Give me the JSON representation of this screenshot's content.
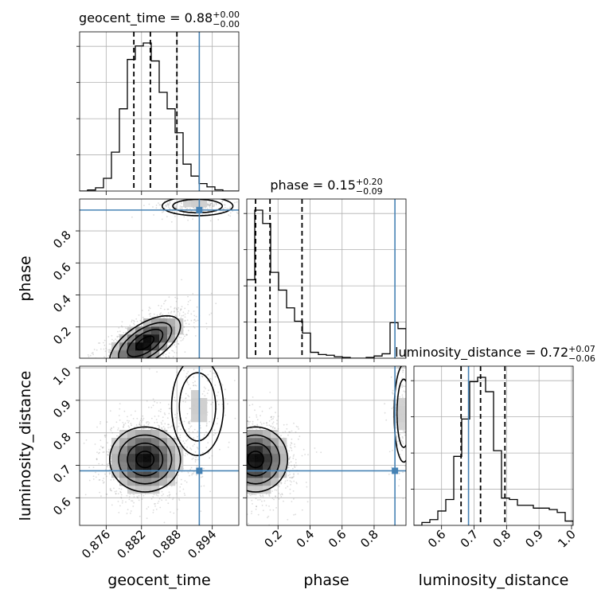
{
  "chart_data": {
    "type": "corner",
    "parameters": [
      "geocent_time",
      "phase",
      "luminosity_distance"
    ],
    "truths": {
      "geocent_time": 0.8918,
      "phase": 0.93,
      "luminosity_distance": 0.683
    },
    "ranges": {
      "geocent_time": [
        0.8715,
        0.8985
      ],
      "phase": [
        0.005,
        0.999
      ],
      "luminosity_distance": [
        0.515,
        1.005
      ]
    },
    "ticks": {
      "geocent_time": {
        "values": [
          0.876,
          0.882,
          0.888,
          0.894
        ],
        "labels": [
          "0.876",
          "0.882",
          "0.888",
          "0.894"
        ]
      },
      "phase": {
        "values": [
          0.2,
          0.4,
          0.6,
          0.8
        ],
        "labels": [
          "0.2",
          "0.4",
          "0.6",
          "0.8"
        ]
      },
      "luminosity_distance": {
        "values": [
          0.6,
          0.7,
          0.8,
          0.9,
          1.0
        ],
        "labels": [
          "0.6",
          "0.7",
          "0.8",
          "0.9",
          "1.0"
        ]
      }
    },
    "titles": [
      {
        "text": "geocent_time = 0.88",
        "sup": "+0.00",
        "sub": "−0.00"
      },
      {
        "text": "phase = 0.15",
        "sup": "+0.20",
        "sub": "−0.09"
      },
      {
        "text": "luminosity_distance = 0.72",
        "sup": "+0.07",
        "sub": "−0.06"
      }
    ],
    "axis_labels": {
      "geocent_time": "geocent_time",
      "phase": "phase",
      "luminosity_distance": "luminosity_distance"
    },
    "quantiles": {
      "geocent_time": [
        0.8807,
        0.8835,
        0.888
      ],
      "phase": [
        0.06,
        0.15,
        0.35
      ],
      "luminosity_distance": [
        0.66,
        0.72,
        0.795
      ]
    },
    "histograms": {
      "geocent_time": {
        "edges": [
          0.8715,
          0.87285,
          0.8742,
          0.87555,
          0.8769,
          0.87825,
          0.8796,
          0.88095,
          0.8823,
          0.88365,
          0.885,
          0.88635,
          0.8877,
          0.88905,
          0.8904,
          0.89175,
          0.8931,
          0.89445,
          0.8958,
          0.89715,
          0.8985
        ],
        "counts": [
          0,
          0.7,
          2.2,
          8.5,
          26,
          55,
          88,
          97,
          99,
          87,
          66,
          55,
          39,
          18,
          10,
          5,
          2.8,
          0.8,
          0,
          0
        ]
      },
      "phase": {
        "edges": [
          0.005,
          0.0547,
          0.1044,
          0.1541,
          0.2038,
          0.2535,
          0.3032,
          0.3529,
          0.4026,
          0.4523,
          0.502,
          0.5517,
          0.6014,
          0.6511,
          0.7008,
          0.7505,
          0.8002,
          0.8499,
          0.8996,
          0.9493,
          0.999
        ],
        "counts": [
          53,
          100,
          91,
          58,
          46,
          34,
          25,
          17,
          4,
          2.5,
          2,
          1,
          0.5,
          0,
          0,
          0.5,
          1.5,
          3,
          24,
          20
        ]
      },
      "luminosity_distance": {
        "edges": [
          0.515,
          0.5395,
          0.564,
          0.5885,
          0.613,
          0.6375,
          0.662,
          0.6865,
          0.711,
          0.7355,
          0.76,
          0.7845,
          0.809,
          0.8335,
          0.858,
          0.8825,
          0.907,
          0.9315,
          0.956,
          0.9805,
          1.005
        ],
        "counts": [
          0,
          2,
          4,
          10,
          18,
          48,
          74,
          100,
          103,
          93,
          52,
          19,
          18,
          14,
          14,
          12,
          12,
          11,
          9,
          3
        ]
      }
    },
    "pairs": [
      {
        "x": "geocent_time",
        "y": "phase",
        "modes": [
          {
            "cx": 0.8826,
            "cy": 0.1,
            "sx": 0.003,
            "sy": 0.085,
            "rho": 0.62,
            "w": 1.0
          },
          {
            "cx": 0.8915,
            "cy": 0.955,
            "sx": 0.003,
            "sy": 0.03,
            "rho": 0.0,
            "w": 0.18
          }
        ]
      },
      {
        "x": "geocent_time",
        "y": "luminosity_distance",
        "modes": [
          {
            "cx": 0.8826,
            "cy": 0.718,
            "sx": 0.003,
            "sy": 0.05,
            "rho": 0.0,
            "w": 1.0
          },
          {
            "cx": 0.8915,
            "cy": 0.88,
            "sx": 0.0022,
            "sy": 0.075,
            "rho": 0.0,
            "w": 0.16
          }
        ]
      },
      {
        "x": "phase",
        "y": "luminosity_distance",
        "modes": [
          {
            "cx": 0.06,
            "cy": 0.718,
            "sx": 0.1,
            "sy": 0.05,
            "rho": 0.0,
            "w": 1.0
          },
          {
            "cx": 0.985,
            "cy": 0.86,
            "sx": 0.03,
            "sy": 0.075,
            "rho": 0.0,
            "w": 0.16
          }
        ]
      }
    ],
    "grid": true
  }
}
